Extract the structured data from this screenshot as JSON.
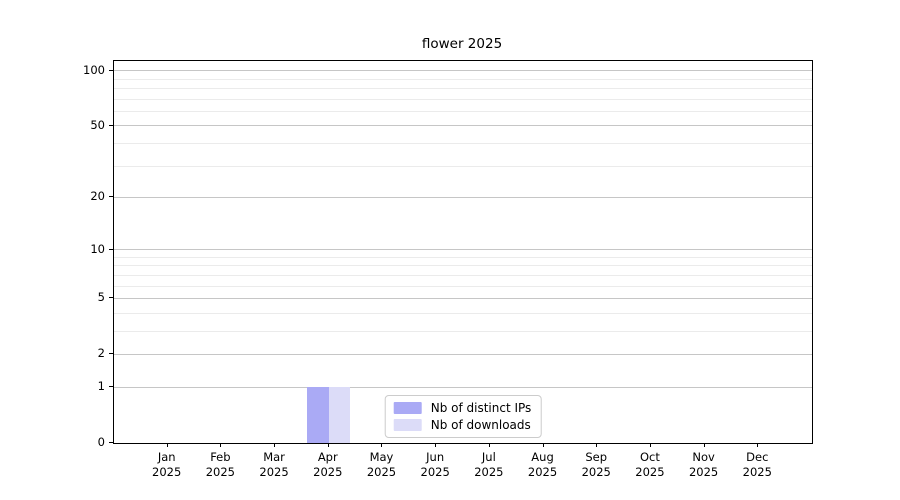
{
  "chart_data": {
    "type": "bar",
    "title": "flower 2025",
    "categories": [
      "Jan",
      "Feb",
      "Mar",
      "Apr",
      "May",
      "Jun",
      "Jul",
      "Aug",
      "Sep",
      "Oct",
      "Nov",
      "Dec"
    ],
    "category_year": "2025",
    "series": [
      {
        "name": "Nb of distinct IPs",
        "color": "#aaaaf5",
        "values": [
          0,
          0,
          0,
          1,
          0,
          0,
          0,
          0,
          0,
          0,
          0,
          0
        ]
      },
      {
        "name": "Nb of downloads",
        "color": "#dcdcf8",
        "values": [
          0,
          0,
          0,
          1,
          0,
          0,
          0,
          0,
          0,
          0,
          0,
          0
        ]
      }
    ],
    "yscale": "log1p",
    "ylim": [
      0,
      113
    ],
    "y_major_ticks": [
      100,
      50,
      20,
      10,
      5,
      2,
      1,
      0
    ],
    "y_minor_ticks": [
      3,
      4,
      6,
      7,
      8,
      9,
      30,
      40,
      60,
      70,
      80,
      90
    ],
    "xlabel": "",
    "ylabel": "",
    "grid": "horizontal",
    "legend_position": "lower center",
    "background_color": "#ffffff",
    "axis_color": "#000000",
    "grid_major_color": "#c6c6c6",
    "grid_minor_color": "#ebebeb"
  }
}
